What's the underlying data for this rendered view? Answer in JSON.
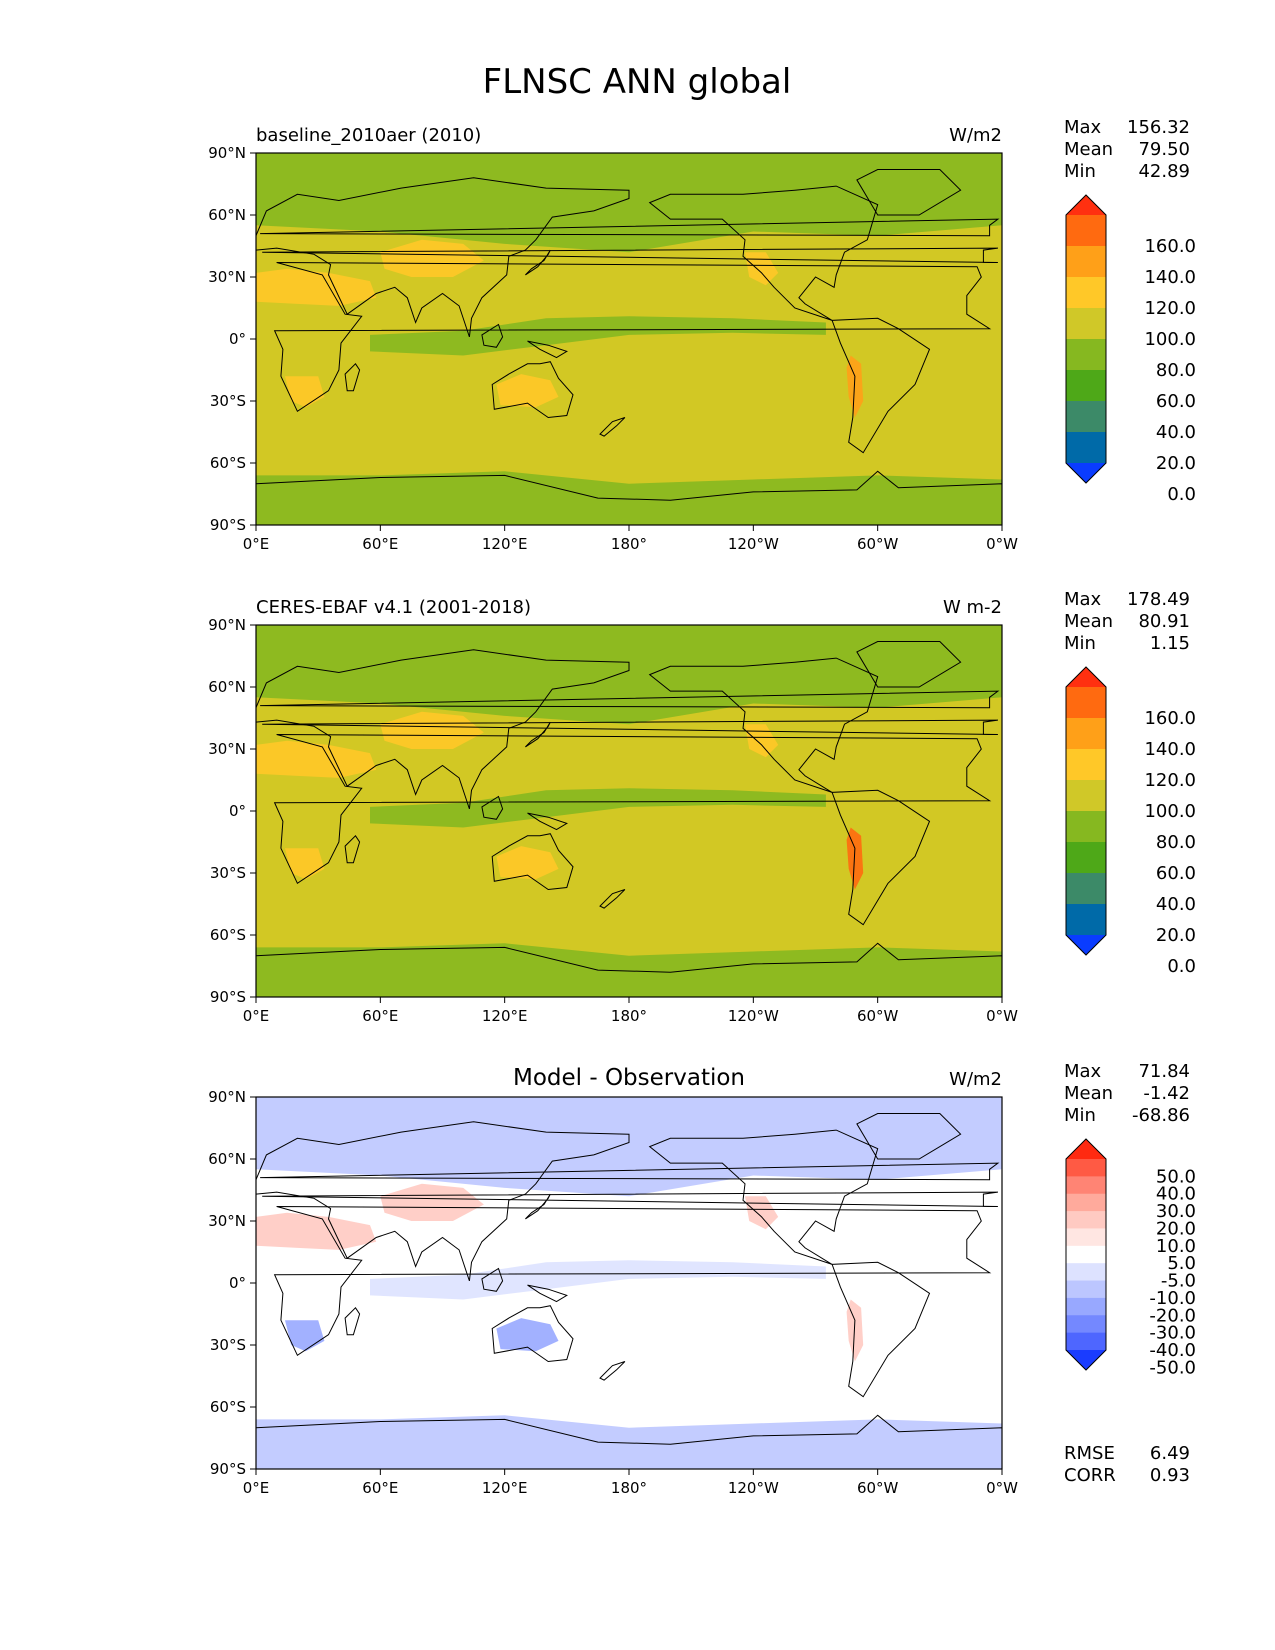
{
  "page": {
    "title": "FLNSC ANN global"
  },
  "axes": {
    "lat_ticks": [
      "90°N",
      "60°N",
      "30°N",
      "0°",
      "30°S",
      "60°S",
      "90°S"
    ],
    "lon_ticks": [
      "0°E",
      "60°E",
      "120°E",
      "180°",
      "120°W",
      "60°W",
      "0°W"
    ]
  },
  "panels": [
    {
      "id": "baseline",
      "left_title": "baseline_2010aer (2010)",
      "center_title": "",
      "units": "W/m2",
      "stats": [
        {
          "label": "Max",
          "value": "156.32"
        },
        {
          "label": "Mean",
          "value": "79.50"
        },
        {
          "label": "Min",
          "value": "42.89"
        }
      ],
      "colorbar": {
        "labels": [
          "160.0",
          "140.0",
          "120.0",
          "100.0",
          "80.0",
          "60.0",
          "40.0",
          "20.0",
          "0.0"
        ],
        "colors": [
          "#ff3010",
          "#ff6a10",
          "#ffa018",
          "#ffc828",
          "#d0c828",
          "#86b820",
          "#4ea818",
          "#3c8a68",
          "#006aa8",
          "#0a3cff"
        ]
      },
      "background_color": "#d2c824",
      "extra_stats": []
    },
    {
      "id": "observation",
      "left_title": "CERES-EBAF v4.1 (2001-2018)",
      "center_title": "",
      "units": "W m-2",
      "stats": [
        {
          "label": "Max",
          "value": "178.49"
        },
        {
          "label": "Mean",
          "value": "80.91"
        },
        {
          "label": "Min",
          "value": "1.15"
        }
      ],
      "colorbar": {
        "labels": [
          "160.0",
          "140.0",
          "120.0",
          "100.0",
          "80.0",
          "60.0",
          "40.0",
          "20.0",
          "0.0"
        ],
        "colors": [
          "#ff3010",
          "#ff6a10",
          "#ffa018",
          "#ffc828",
          "#d0c828",
          "#86b820",
          "#4ea818",
          "#3c8a68",
          "#006aa8",
          "#0a3cff"
        ]
      },
      "background_color": "#d2c824",
      "extra_stats": []
    },
    {
      "id": "difference",
      "left_title": "",
      "center_title": "Model - Observation",
      "units": "W/m2",
      "stats": [
        {
          "label": "Max",
          "value": "71.84"
        },
        {
          "label": "Mean",
          "value": "-1.42"
        },
        {
          "label": "Min",
          "value": "-68.86"
        }
      ],
      "colorbar": {
        "labels": [
          "50.0",
          "40.0",
          "30.0",
          "20.0",
          "10.0",
          "5.0",
          "-5.0",
          "-10.0",
          "-20.0",
          "-30.0",
          "-40.0",
          "-50.0"
        ],
        "colors": [
          "#ff2a10",
          "#ff5a44",
          "#ff8474",
          "#ffaa9c",
          "#ffcac2",
          "#ffe6e2",
          "#ffffff",
          "#dde2ff",
          "#bcc6ff",
          "#98a8ff",
          "#7488ff",
          "#4e66ff",
          "#1a3cff"
        ]
      },
      "background_color": "#ffffff",
      "extra_stats": [
        {
          "label": "RMSE",
          "value": "6.49"
        },
        {
          "label": "CORR",
          "value": "0.93"
        }
      ]
    }
  ]
}
